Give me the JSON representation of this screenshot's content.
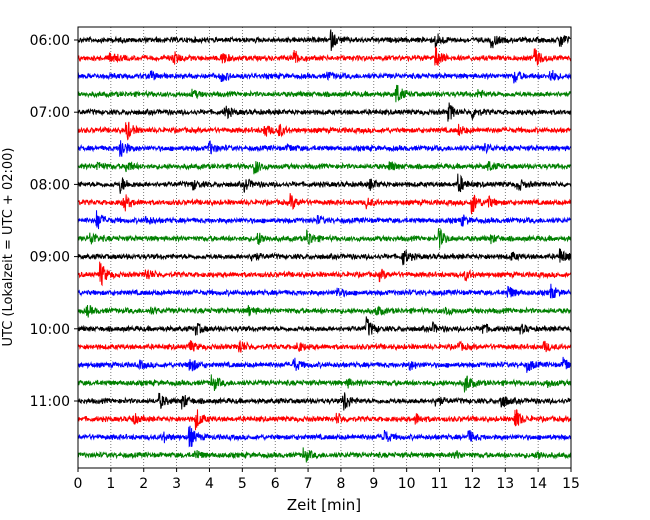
{
  "chart_data": {
    "type": "line",
    "title": "",
    "xlabel": "Zeit  [min]",
    "ylabel": "UTC (Lokalzeit = UTC + 02:00)",
    "xlim": [
      0,
      15
    ],
    "x_ticks": [
      0,
      1,
      2,
      3,
      4,
      5,
      6,
      7,
      8,
      9,
      10,
      11,
      12,
      13,
      14,
      15
    ],
    "y_tick_labels": [
      "06:00",
      "07:00",
      "08:00",
      "09:00",
      "10:00",
      "11:00"
    ],
    "y_tick_rows": [
      0,
      4,
      8,
      12,
      16,
      20
    ],
    "grid": "vertical dotted",
    "rows": 24,
    "minutes_per_row": 15,
    "start": "06:00",
    "color_cycle": [
      "#000000",
      "#ff0000",
      "#0000ff",
      "#008000"
    ],
    "events": [
      [
        [
          7.7,
          0.8
        ],
        [
          10.9,
          0.6
        ],
        [
          12.6,
          0.6
        ],
        [
          14.7,
          0.6
        ]
      ],
      [
        [
          1.0,
          0.5
        ],
        [
          2.9,
          0.6
        ],
        [
          4.4,
          0.5
        ],
        [
          6.6,
          0.6
        ],
        [
          10.9,
          0.9
        ],
        [
          13.9,
          0.9
        ]
      ],
      [
        [
          2.2,
          0.4
        ],
        [
          4.4,
          0.4
        ],
        [
          7.6,
          0.3
        ],
        [
          13.3,
          0.5
        ],
        [
          14.4,
          0.5
        ]
      ],
      [
        [
          3.5,
          0.3
        ],
        [
          9.7,
          0.9
        ],
        [
          12.2,
          0.3
        ]
      ],
      [
        [
          4.5,
          0.5
        ],
        [
          11.3,
          0.7
        ],
        [
          12.0,
          0.5
        ]
      ],
      [
        [
          1.5,
          0.8
        ],
        [
          5.7,
          0.5
        ],
        [
          6.1,
          0.6
        ],
        [
          11.6,
          0.4
        ]
      ],
      [
        [
          1.3,
          1.0
        ],
        [
          4.0,
          0.6
        ],
        [
          6.4,
          0.3
        ],
        [
          12.4,
          0.4
        ]
      ],
      [
        [
          0.6,
          0.4
        ],
        [
          1.5,
          0.5
        ],
        [
          5.4,
          0.6
        ],
        [
          9.5,
          0.4
        ],
        [
          12.5,
          0.4
        ]
      ],
      [
        [
          1.3,
          0.7
        ],
        [
          3.5,
          0.4
        ],
        [
          5.1,
          0.5
        ],
        [
          8.9,
          0.4
        ],
        [
          11.6,
          0.8
        ],
        [
          13.4,
          0.5
        ]
      ],
      [
        [
          1.4,
          0.8
        ],
        [
          6.5,
          0.6
        ],
        [
          8.8,
          0.4
        ],
        [
          12.0,
          1.0
        ],
        [
          12.5,
          0.4
        ]
      ],
      [
        [
          0.6,
          0.8
        ],
        [
          2.1,
          0.3
        ],
        [
          7.3,
          0.3
        ],
        [
          11.7,
          0.4
        ]
      ],
      [
        [
          0.4,
          0.6
        ],
        [
          5.5,
          0.5
        ],
        [
          7.0,
          0.7
        ],
        [
          11.0,
          0.8
        ],
        [
          12.6,
          0.3
        ]
      ],
      [
        [
          5.3,
          0.4
        ],
        [
          9.9,
          0.7
        ],
        [
          13.2,
          0.3
        ],
        [
          14.7,
          0.6
        ]
      ],
      [
        [
          0.7,
          1.0
        ],
        [
          2.1,
          0.5
        ],
        [
          9.2,
          0.4
        ],
        [
          11.8,
          0.4
        ]
      ],
      [
        [
          7.9,
          0.4
        ],
        [
          13.1,
          0.6
        ],
        [
          14.4,
          0.6
        ]
      ],
      [
        [
          0.3,
          0.4
        ],
        [
          2.2,
          0.3
        ],
        [
          5.2,
          0.4
        ],
        [
          9.1,
          0.4
        ],
        [
          11.2,
          0.3
        ]
      ],
      [
        [
          3.6,
          0.5
        ],
        [
          8.8,
          0.9
        ],
        [
          10.8,
          0.4
        ],
        [
          12.3,
          0.5
        ],
        [
          13.5,
          0.3
        ]
      ],
      [
        [
          3.4,
          0.5
        ],
        [
          4.9,
          0.7
        ],
        [
          6.7,
          0.4
        ],
        [
          11.6,
          0.3
        ],
        [
          14.2,
          0.4
        ]
      ],
      [
        [
          1.9,
          0.3
        ],
        [
          3.4,
          0.8
        ],
        [
          6.6,
          0.5
        ],
        [
          10.1,
          0.4
        ],
        [
          13.7,
          0.5
        ],
        [
          14.8,
          0.6
        ]
      ],
      [
        [
          4.1,
          0.7
        ],
        [
          8.2,
          0.3
        ],
        [
          11.8,
          0.8
        ],
        [
          14.3,
          0.3
        ]
      ],
      [
        [
          2.5,
          0.6
        ],
        [
          3.2,
          0.6
        ],
        [
          8.1,
          0.9
        ],
        [
          10.9,
          0.5
        ],
        [
          12.9,
          0.6
        ]
      ],
      [
        [
          1.7,
          0.4
        ],
        [
          3.6,
          0.9
        ],
        [
          7.9,
          0.4
        ],
        [
          10.3,
          0.4
        ],
        [
          13.3,
          1.0
        ]
      ],
      [
        [
          2.6,
          0.4
        ],
        [
          3.4,
          1.0
        ],
        [
          9.3,
          0.7
        ],
        [
          11.9,
          0.5
        ]
      ],
      [
        [
          3.6,
          0.4
        ],
        [
          6.9,
          0.6
        ],
        [
          11.5,
          0.3
        ],
        [
          14.0,
          0.3
        ]
      ]
    ]
  }
}
